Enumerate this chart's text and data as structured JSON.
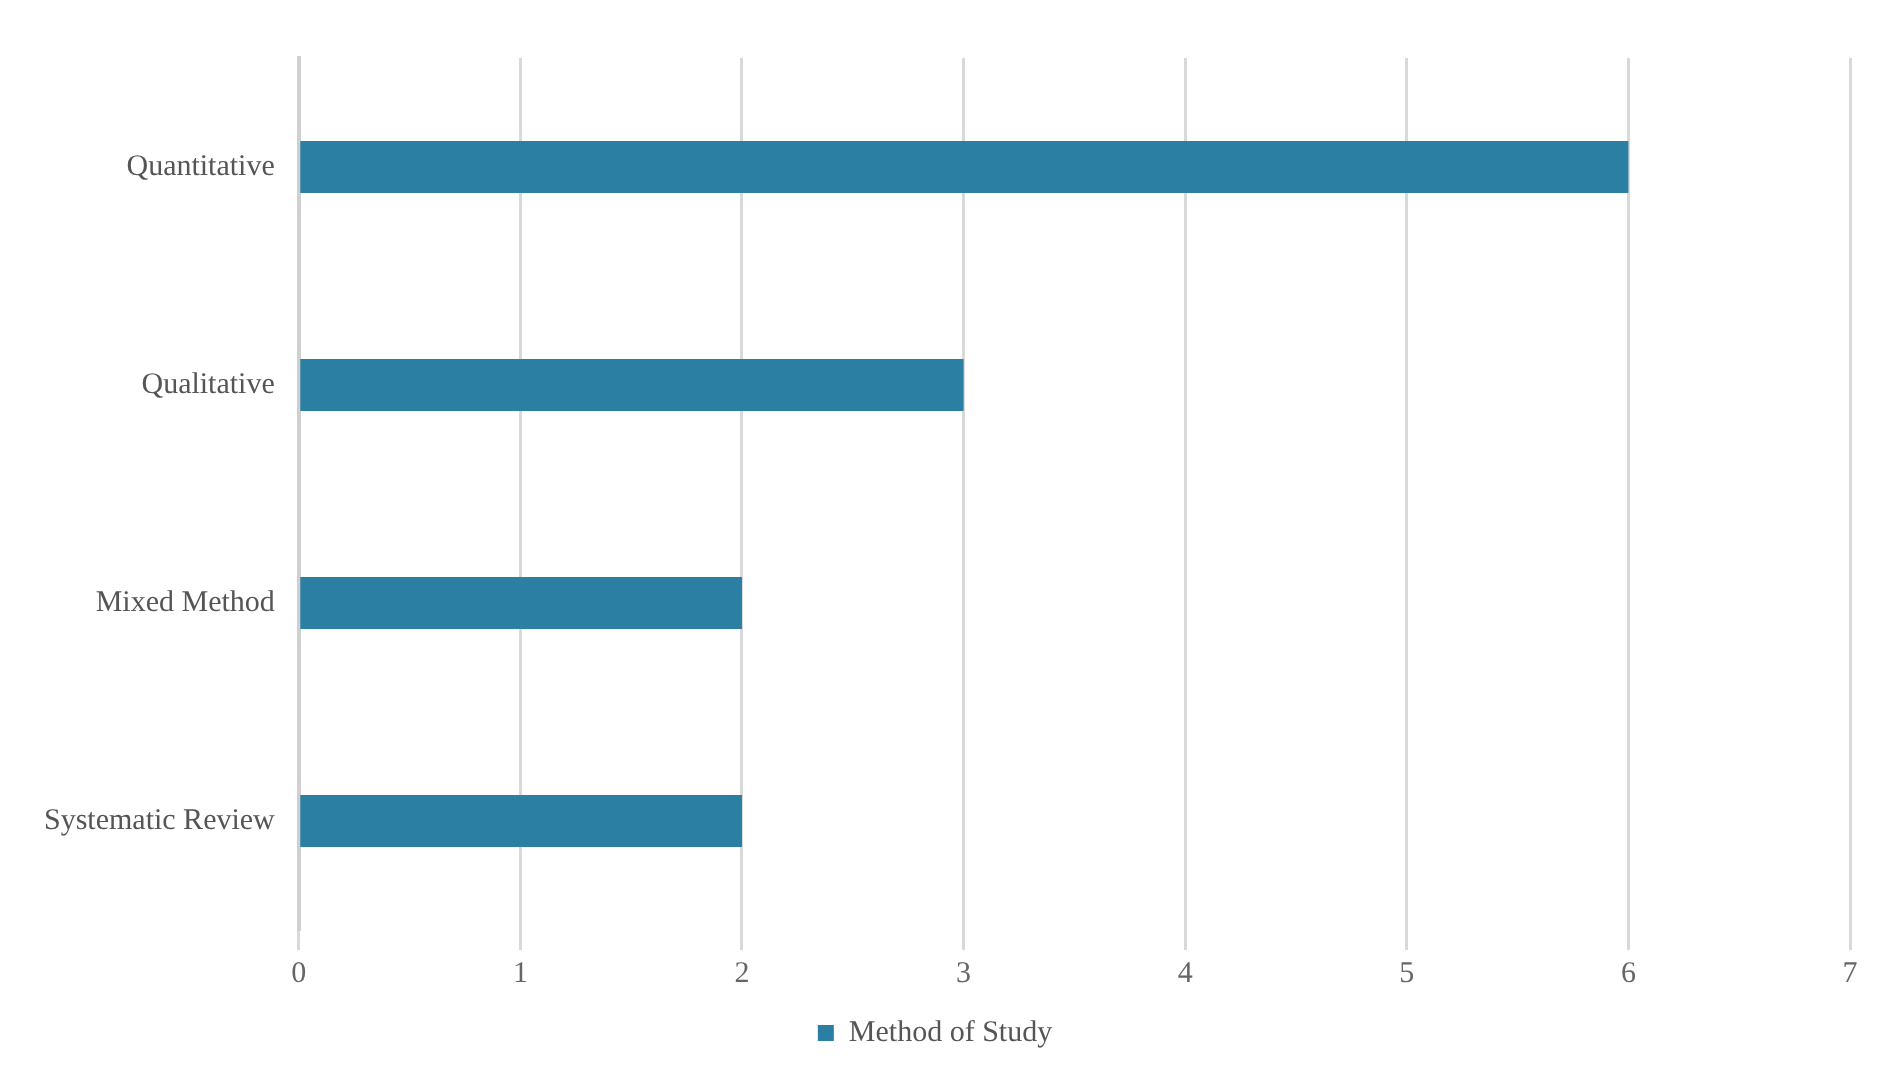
{
  "chart_data": {
    "type": "bar",
    "orientation": "horizontal",
    "categories": [
      "Quantitative",
      "Qualitative",
      "Mixed Method",
      "Systematic Review"
    ],
    "series": [
      {
        "name": "Method of Study",
        "color": "#2a7fa3",
        "values": [
          6,
          3,
          2,
          2
        ]
      }
    ],
    "xlim": [
      0,
      7
    ],
    "xticks": [
      0,
      1,
      2,
      3,
      4,
      5,
      6,
      7
    ],
    "grid": "x",
    "legend": "bottom"
  }
}
